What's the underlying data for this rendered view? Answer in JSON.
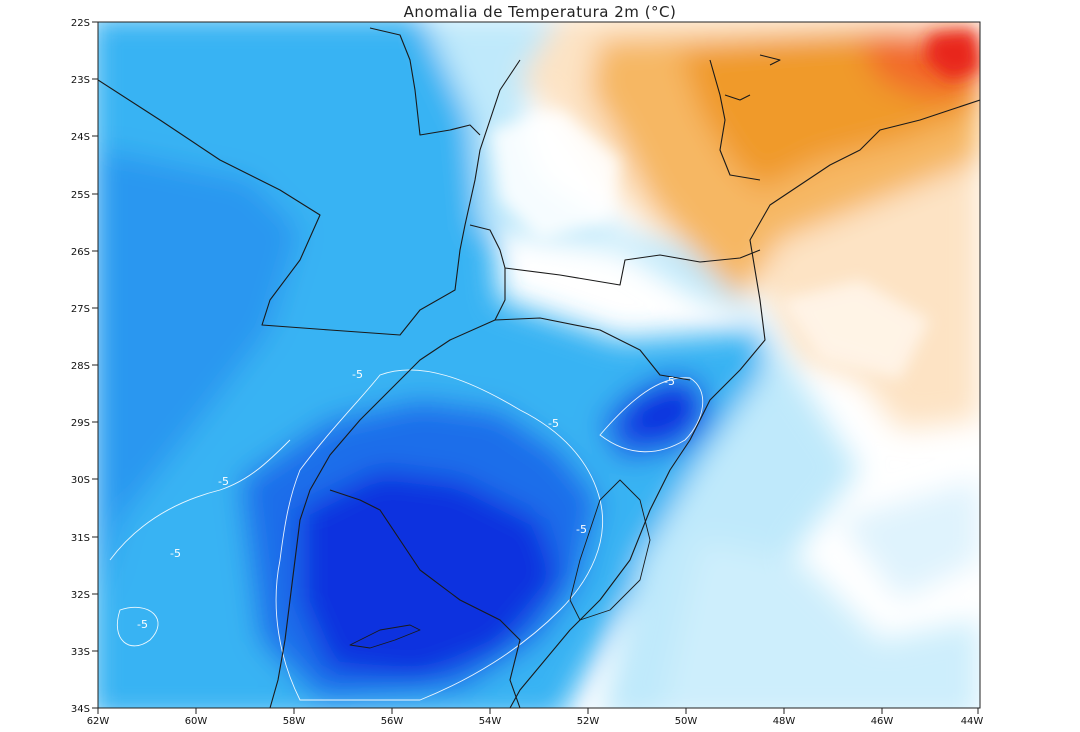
{
  "title": "Anomalia de Temperatura 2m (°C)",
  "lat_ticks": [
    "22S",
    "23S",
    "24S",
    "25S",
    "26S",
    "27S",
    "28S",
    "29S",
    "30S",
    "31S",
    "32S",
    "33S",
    "34S"
  ],
  "lon_ticks": [
    "62W",
    "60W",
    "58W",
    "56W",
    "54W",
    "52W",
    "50W",
    "48W",
    "46W",
    "44W"
  ],
  "contour_labels": [
    "-5",
    "-5",
    "-5",
    "-5",
    "-5",
    "-5",
    "-5"
  ],
  "colors": {
    "deep_blue": "#0a2fe0",
    "mid_blue": "#1e78f0",
    "light_blue": "#3fb8f5",
    "pale_blue": "#c8ecfb",
    "neutral": "#ffffff",
    "pale_orange": "#fde3c4",
    "orange": "#f3a23a",
    "red": "#e8271c"
  }
}
